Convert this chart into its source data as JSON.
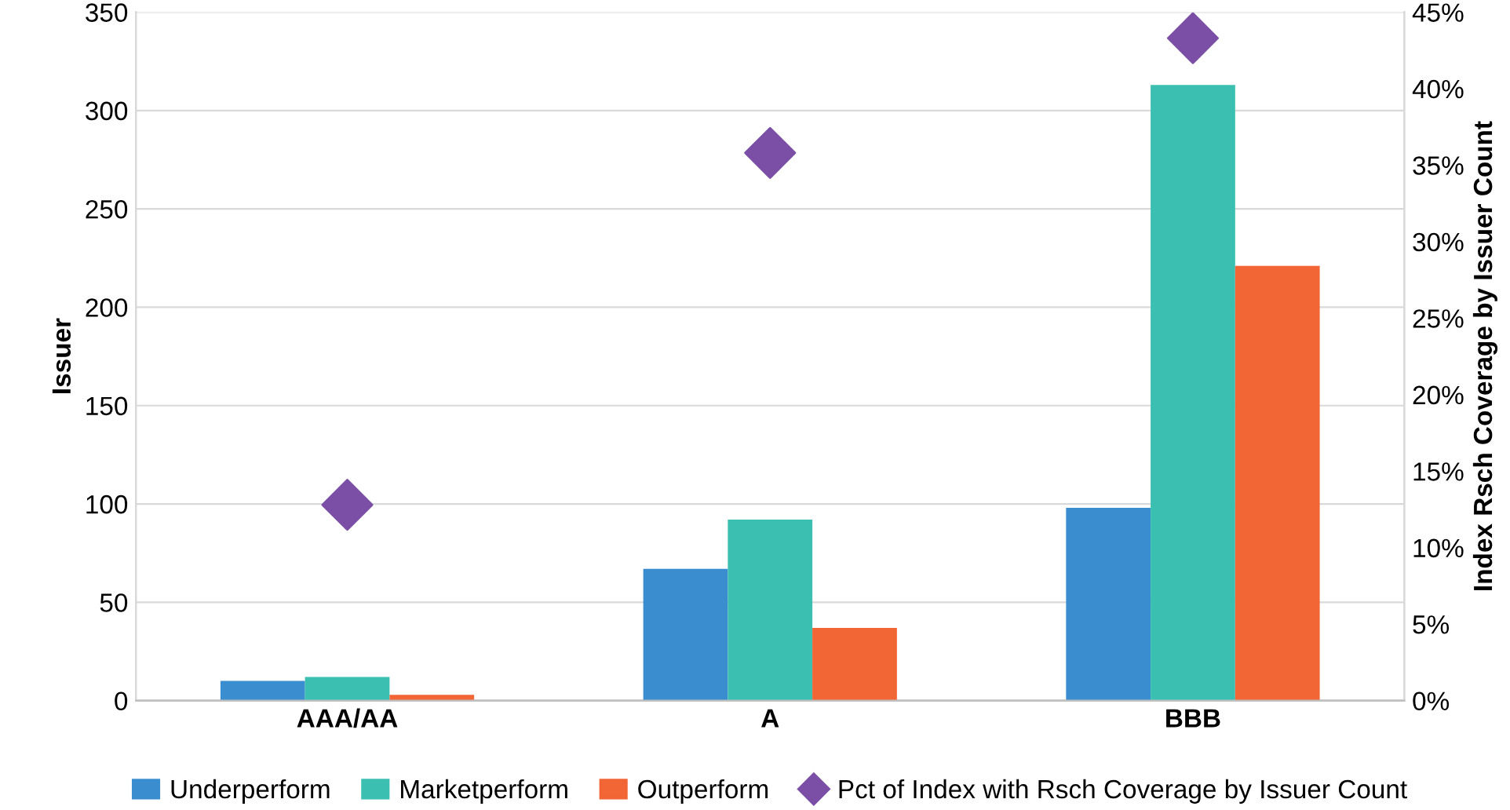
{
  "chart_data": {
    "type": "bar",
    "categories": [
      "AAA/AA",
      "A",
      "BBB"
    ],
    "ylabel": "Issuer",
    "y2label": "Index Rsch Coverage by Issuer Count",
    "series": [
      {
        "name": "Underperform",
        "color": "#3a8dcf",
        "values": [
          10,
          67,
          98
        ]
      },
      {
        "name": "Marketperform",
        "color": "#3bbfb1",
        "values": [
          12,
          92,
          313
        ]
      },
      {
        "name": "Outperform",
        "color": "#f26535",
        "values": [
          3,
          37,
          221
        ]
      },
      {
        "name": "Pct of Index with Rsch Coverage by Issuer Count",
        "type": "scatter",
        "axis": "y2",
        "marker": "diamond",
        "color": "#7b4fa6",
        "values": [
          12.8,
          35.8,
          43.3
        ]
      }
    ],
    "ylim": [
      0,
      350
    ],
    "yticks": [
      0,
      50,
      100,
      150,
      200,
      250,
      300,
      350
    ],
    "y2lim": [
      0,
      45
    ],
    "y2ticks": [
      {
        "value": 0,
        "label": "0%"
      },
      {
        "value": 5,
        "label": "5%"
      },
      {
        "value": 10,
        "label": "10%"
      },
      {
        "value": 15,
        "label": "15%"
      },
      {
        "value": 20,
        "label": "20%"
      },
      {
        "value": 25,
        "label": "25%"
      },
      {
        "value": 30,
        "label": "30%"
      },
      {
        "value": 35,
        "label": "35%"
      },
      {
        "value": 40,
        "label": "40%"
      },
      {
        "value": 45,
        "label": "45%"
      }
    ],
    "grid": "y",
    "legend": "bottom"
  }
}
